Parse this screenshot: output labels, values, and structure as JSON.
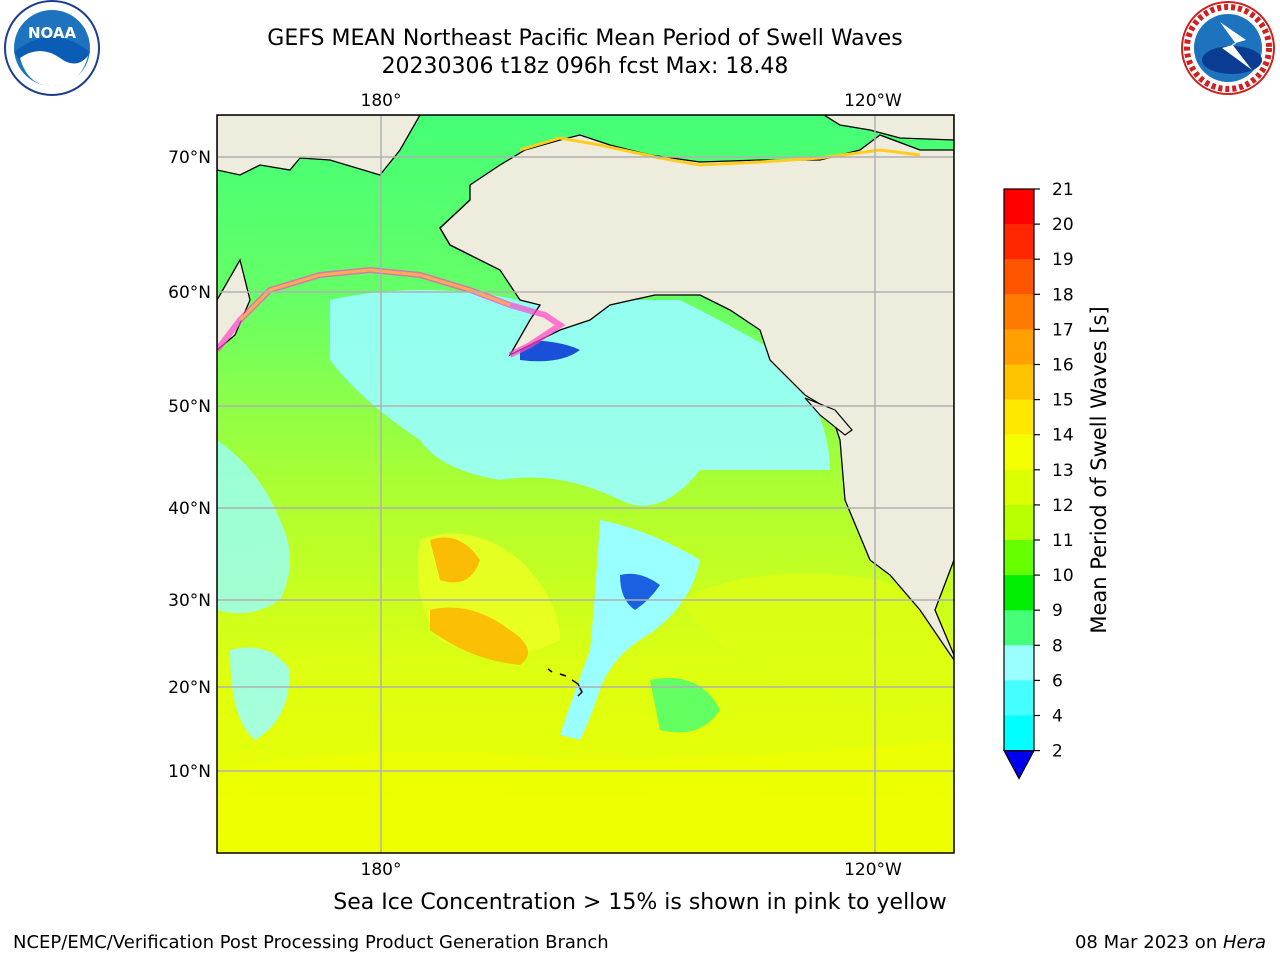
{
  "title": {
    "line1": "GEFS MEAN Northeast Pacific Mean Period of Swell Waves",
    "line2": "20230306 t18z 096h fcst   Max: 18.48"
  },
  "logos": {
    "left": {
      "name": "noaa-logo",
      "text": "NOAA"
    },
    "right": {
      "name": "nws-logo",
      "text": "NATIONAL WEATHER SERVICE"
    }
  },
  "map": {
    "top_lon_labels": [
      "180°",
      "120°W"
    ],
    "bottom_lon_labels": [
      "180°",
      "120°W"
    ],
    "lat_labels": [
      "70°N",
      "60°N",
      "50°N",
      "40°N",
      "30°N",
      "20°N",
      "10°N"
    ],
    "colors": {
      "land": "#eeecdc",
      "ice_pink": "#ff44cc",
      "ice_orange": "#ffaa55",
      "grid": "#b0b0b0"
    }
  },
  "colorbar": {
    "label": "Mean Period of Swell Waves [s]",
    "ticks": [
      "21",
      "20",
      "19",
      "18",
      "17",
      "16",
      "15",
      "14",
      "13",
      "12",
      "11",
      "10",
      "9",
      "8",
      "6",
      "4",
      "2"
    ],
    "colors": [
      "#ff0000",
      "#ff2600",
      "#ff5500",
      "#ff7b00",
      "#ffa000",
      "#ffc200",
      "#ffe800",
      "#f4ff00",
      "#dcff00",
      "#b8ff00",
      "#66ff00",
      "#00ee00",
      "#44ff77",
      "#99ffff",
      "#44ffff",
      "#00ffff",
      "#00aaff",
      "#0055ff",
      "#0000ee"
    ]
  },
  "note": "Sea Ice Concentration > 15% is shown in pink to yellow",
  "footer": {
    "left": "NCEP/EMC/Verification Post Processing Product Generation Branch",
    "right_date": "08 Mar 2023 on ",
    "right_host": "Hera"
  }
}
